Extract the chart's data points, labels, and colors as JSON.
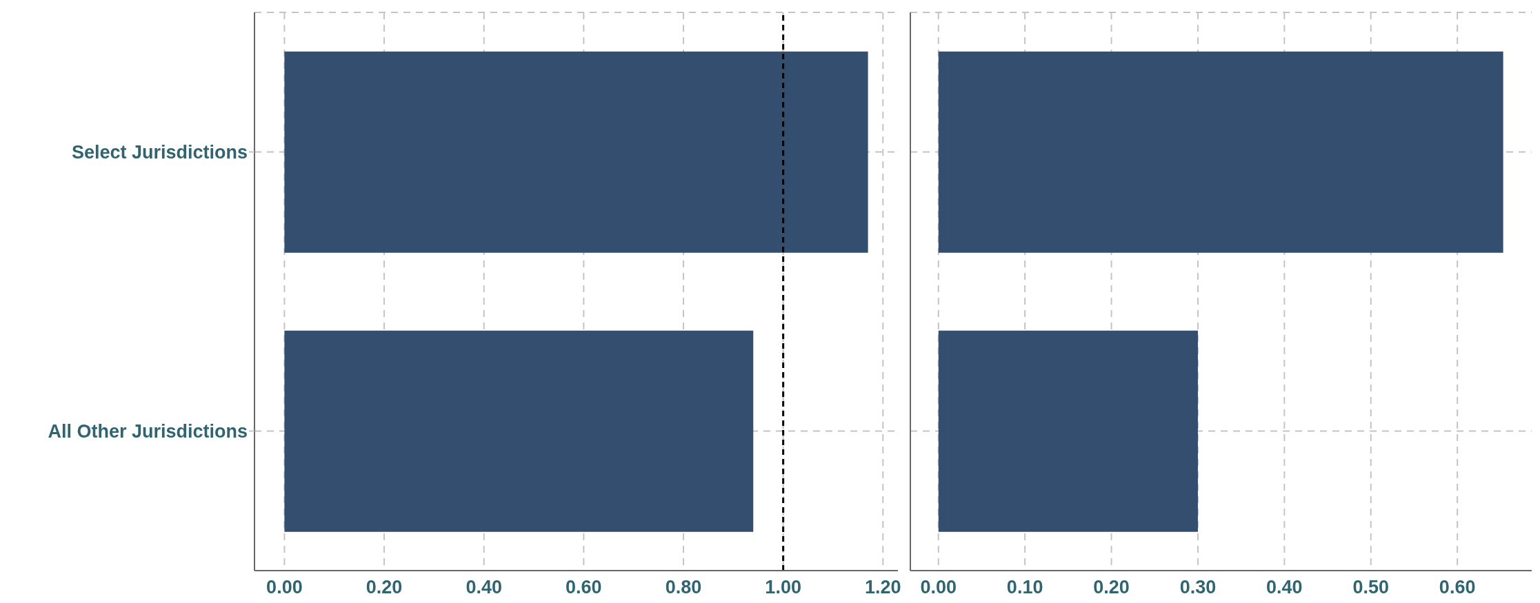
{
  "chart_data": [
    {
      "type": "bar",
      "orientation": "horizontal",
      "categories": [
        "Select Jurisdictions",
        "All Other Jurisdictions"
      ],
      "values": [
        1.17,
        0.94
      ],
      "color": "#344e70",
      "xlim": [
        -0.06,
        1.23
      ],
      "xticks": [
        {
          "value": 0,
          "label": "0.00"
        },
        {
          "value": 0.2,
          "label": "0.20"
        },
        {
          "value": 0.4,
          "label": "0.40"
        },
        {
          "value": 0.6,
          "label": "0.60"
        },
        {
          "value": 0.8,
          "label": "0.80"
        },
        {
          "value": 1,
          "label": "1.00"
        },
        {
          "value": 1.2,
          "label": "1.20"
        }
      ],
      "grid": true,
      "ref_lines": [
        {
          "axis": "x",
          "value": 1,
          "color": "#000000",
          "line_style": "dashed"
        }
      ]
    },
    {
      "type": "bar",
      "orientation": "horizontal",
      "categories": [
        null,
        null
      ],
      "values": [
        0.653,
        0.3
      ],
      "color": "#344e70",
      "xlim": [
        -0.0325,
        0.686
      ],
      "xticks": [
        {
          "value": 0,
          "label": "0.00"
        },
        {
          "value": 0.1,
          "label": "0.10"
        },
        {
          "value": 0.2,
          "label": "0.20"
        },
        {
          "value": 0.3,
          "label": "0.30"
        },
        {
          "value": 0.4,
          "label": "0.40"
        },
        {
          "value": 0.5,
          "label": "0.50"
        },
        {
          "value": 0.6,
          "label": "0.60"
        }
      ],
      "grid": true,
      "tick_labels": "x"
    }
  ]
}
